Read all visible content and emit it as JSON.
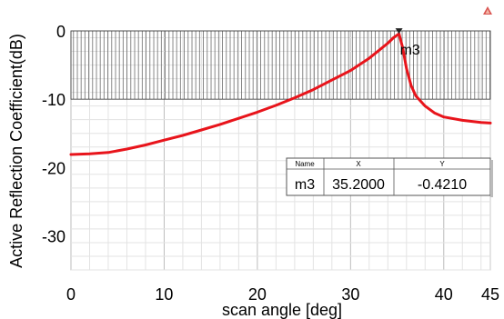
{
  "chart_data": {
    "type": "line",
    "title": "",
    "xlabel": "scan angle [deg]",
    "ylabel": "Active Reflection Coefficient(dB)",
    "xlim": [
      0,
      45
    ],
    "ylim": [
      -35,
      0
    ],
    "xticks": [
      0,
      10,
      20,
      30,
      40,
      45
    ],
    "yticks": [
      0,
      -10,
      -20,
      -30
    ],
    "grid": true,
    "hatched_region": {
      "y_from": -10,
      "y_to": 0
    },
    "series": [
      {
        "color": "#e8141b",
        "x": [
          0,
          2,
          4,
          6,
          8,
          10,
          12,
          14,
          16,
          18,
          20,
          22,
          24,
          26,
          28,
          30,
          32,
          33,
          34,
          34.6,
          35.2,
          35.6,
          36,
          36.5,
          37,
          38,
          39,
          40,
          42,
          44,
          45
        ],
        "y": [
          -18.1,
          -18.0,
          -17.8,
          -17.3,
          -16.7,
          -16.0,
          -15.3,
          -14.5,
          -13.7,
          -12.8,
          -11.9,
          -10.9,
          -9.8,
          -8.6,
          -7.2,
          -5.8,
          -4.0,
          -2.9,
          -1.8,
          -1.0,
          -0.421,
          -2.5,
          -5.5,
          -8.0,
          -9.5,
          -11.0,
          -12.0,
          -12.6,
          -13.1,
          -13.4,
          -13.5
        ]
      }
    ],
    "markers": [
      {
        "name": "m3",
        "x": 35.2,
        "y": -0.421
      }
    ],
    "marker_table": {
      "headers": [
        "Name",
        "X",
        "Y"
      ],
      "rows": [
        [
          "m3",
          "35.2000",
          "-0.4210"
        ]
      ]
    }
  },
  "corner_logo": "ansys-logo-icon"
}
